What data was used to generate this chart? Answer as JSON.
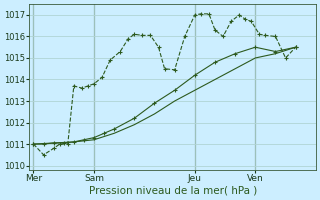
{
  "background_color": "#cceeff",
  "grid_color": "#b0d4d4",
  "line_color": "#2d5a1e",
  "xlabel": "Pression niveau de la mer( hPa )",
  "ylim": [
    1009.8,
    1017.5
  ],
  "yticks": [
    1010,
    1011,
    1012,
    1013,
    1014,
    1015,
    1016,
    1017
  ],
  "day_labels": [
    "Mer",
    "Sam",
    "Jeu",
    "Ven"
  ],
  "day_positions": [
    0,
    3,
    8,
    11
  ],
  "vline_positions": [
    0,
    3,
    8,
    11
  ],
  "xlim": [
    -0.2,
    14
  ],
  "line1_x": [
    0,
    0.5,
    1,
    1.3,
    1.7,
    2.0,
    2.4,
    2.7,
    3.0,
    3.4,
    3.8,
    4.3,
    4.7,
    5.0,
    5.4,
    5.8,
    6.2,
    6.5,
    7.0,
    7.5,
    8.0,
    8.3,
    8.7,
    9.0,
    9.4,
    9.8,
    10.2,
    10.5,
    10.8,
    11.2,
    11.5,
    12.0,
    12.5,
    13.0
  ],
  "line1_y": [
    1011.0,
    1010.5,
    1010.8,
    1011.0,
    1011.0,
    1013.7,
    1013.6,
    1013.7,
    1013.8,
    1014.1,
    1014.9,
    1015.3,
    1015.9,
    1016.1,
    1016.05,
    1016.05,
    1015.5,
    1014.5,
    1014.45,
    1016.0,
    1017.0,
    1017.05,
    1017.05,
    1016.3,
    1016.0,
    1016.7,
    1017.0,
    1016.8,
    1016.7,
    1016.1,
    1016.05,
    1016.0,
    1015.0,
    1015.5
  ],
  "line2_x": [
    0,
    0.5,
    1.0,
    1.5,
    2.0,
    2.5,
    3.0,
    3.5,
    4.0,
    5.0,
    6.0,
    7.0,
    8.0,
    9.0,
    10.0,
    11.0,
    12.0,
    13.0
  ],
  "line2_y": [
    1011.0,
    1011.0,
    1011.05,
    1011.05,
    1011.1,
    1011.2,
    1011.3,
    1011.5,
    1011.7,
    1012.2,
    1012.9,
    1013.5,
    1014.2,
    1014.8,
    1015.2,
    1015.5,
    1015.3,
    1015.5
  ],
  "line3_x": [
    0,
    1.0,
    2.0,
    3.0,
    4.0,
    5.0,
    6.0,
    7.0,
    8.0,
    9.0,
    10.0,
    11.0,
    12.0,
    13.0
  ],
  "line3_y": [
    1011.0,
    1011.05,
    1011.1,
    1011.2,
    1011.5,
    1011.9,
    1012.4,
    1013.0,
    1013.5,
    1014.0,
    1014.5,
    1015.0,
    1015.2,
    1015.5
  ],
  "ytick_fontsize": 6,
  "xtick_fontsize": 6.5,
  "xlabel_fontsize": 7.5,
  "xlabel_color": "#2d5a1e"
}
